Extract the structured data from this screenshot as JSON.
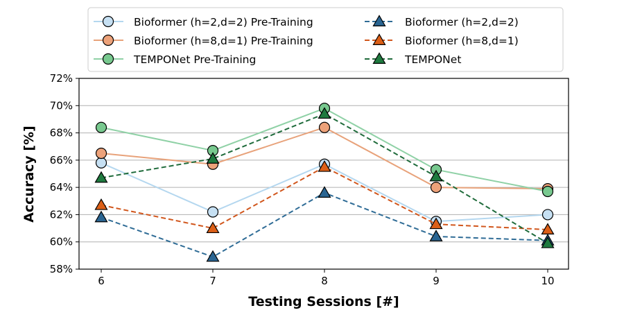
{
  "chart_data": {
    "type": "line",
    "title": "",
    "xlabel": "Testing Sessions [#]",
    "ylabel": "Accuracy [%]",
    "x": [
      6,
      7,
      8,
      9,
      10
    ],
    "x_tick_labels": [
      "6",
      "7",
      "8",
      "9",
      "10"
    ],
    "ylim": [
      58,
      72
    ],
    "y_ticks": [
      58,
      60,
      62,
      64,
      66,
      68,
      70,
      72
    ],
    "y_tick_labels": [
      "58%",
      "60%",
      "62%",
      "64%",
      "66%",
      "68%",
      "70%",
      "72%"
    ],
    "grid": "horizontal",
    "legend_position": "top, outside plot",
    "series": [
      {
        "name": "Bioformer (h=2,d=2) Pre-Training",
        "values": [
          65.8,
          62.2,
          65.7,
          61.5,
          62.0
        ],
        "color": "#b4d7ef",
        "marker_fill": "#c6e0f3",
        "marker": "circle",
        "linestyle": "solid"
      },
      {
        "name": "Bioformer (h=8,d=1) Pre-Training",
        "values": [
          66.5,
          65.7,
          68.4,
          64.0,
          63.9
        ],
        "color": "#e8a27a",
        "marker_fill": "#eda27a",
        "marker": "circle",
        "linestyle": "solid"
      },
      {
        "name": "TEMPONet Pre-Training",
        "values": [
          68.4,
          66.7,
          69.8,
          65.3,
          63.7
        ],
        "color": "#8fd1a6",
        "marker_fill": "#78c98f",
        "marker": "circle",
        "linestyle": "solid"
      },
      {
        "name": "Bioformer (h=2,d=2)",
        "values": [
          61.8,
          58.9,
          63.6,
          60.4,
          60.1
        ],
        "color": "#2f6c96",
        "marker_fill": "#2a6592",
        "marker": "triangle",
        "linestyle": "dashed"
      },
      {
        "name": "Bioformer (h=8,d=1)",
        "values": [
          62.7,
          61.0,
          65.5,
          61.3,
          60.9
        ],
        "color": "#d1561c",
        "marker_fill": "#dc5f17",
        "marker": "triangle",
        "linestyle": "dashed"
      },
      {
        "name": "TEMPONet",
        "values": [
          64.7,
          66.1,
          69.4,
          64.8,
          59.9
        ],
        "color": "#1f6b3b",
        "marker_fill": "#1f7a3f",
        "marker": "triangle",
        "linestyle": "dashed"
      }
    ]
  }
}
